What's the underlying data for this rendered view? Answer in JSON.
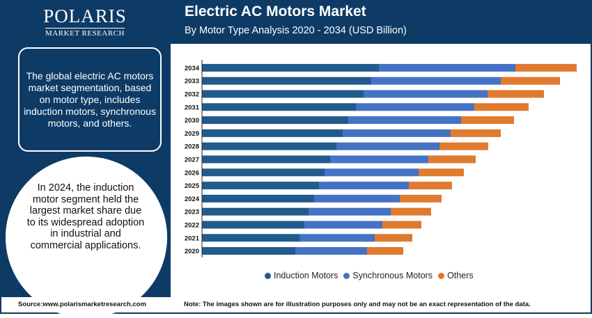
{
  "logo": {
    "name": "POLARIS",
    "sub": "MARKET RESEARCH"
  },
  "header": {
    "title": "Electric AC Motors Market",
    "subtitle": "By Motor Type Analysis 2020 - 2034 (USD Billion)"
  },
  "side": {
    "box_text": "The global electric AC motors market segmentation, based on motor type, includes induction motors, synchronous motors, and others.",
    "circle_text": "In 2024, the induction motor segment held the largest market share due to its widespread adoption in industrial and commercial applications."
  },
  "footer": {
    "source": "Source:www.polarismarketresearch.com",
    "note": "Note: The images shown are for illustration purposes only and may not be an exact representation of the data."
  },
  "colors": {
    "navy": "#0e3b66",
    "induction": "#215a8c",
    "synchronous": "#4472c4",
    "others": "#e07a2f"
  },
  "chart_data": {
    "type": "bar",
    "orientation": "horizontal",
    "stacked": true,
    "categories": [
      "2034",
      "2033",
      "2032",
      "2031",
      "2030",
      "2029",
      "2028",
      "2027",
      "2026",
      "2025",
      "2024",
      "2023",
      "2022",
      "2021",
      "2020"
    ],
    "series": [
      {
        "name": "Induction Motors",
        "color": "#215a8c",
        "values": [
          254,
          243,
          232,
          221,
          210,
          202,
          193,
          184,
          176,
          168,
          161,
          153,
          147,
          140,
          134
        ]
      },
      {
        "name": "Synchronous Motors",
        "color": "#4472c4",
        "values": [
          196,
          186,
          178,
          170,
          162,
          155,
          148,
          141,
          135,
          129,
          123,
          118,
          112,
          108,
          103
        ]
      },
      {
        "name": "Others",
        "color": "#e07a2f",
        "values": [
          88,
          85,
          81,
          78,
          76,
          72,
          70,
          68,
          65,
          62,
          60,
          58,
          56,
          54,
          52
        ]
      }
    ],
    "grid": false,
    "legend": "bottom"
  }
}
